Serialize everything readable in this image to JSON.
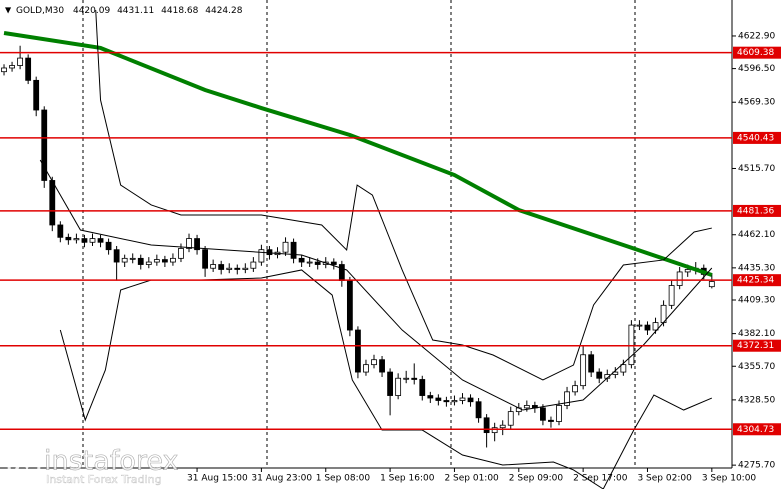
{
  "chart_data": {
    "type": "candlestick",
    "title": "GOLD,M30",
    "ohlc": [
      [
        4594,
        4600,
        4591,
        4597
      ],
      [
        4597,
        4602,
        4594,
        4599
      ],
      [
        4599,
        4615,
        4596,
        4605
      ],
      [
        4605,
        4608,
        4584,
        4587
      ],
      [
        4587,
        4590,
        4558,
        4563
      ],
      [
        4563,
        4566,
        4500,
        4506
      ],
      [
        4506,
        4509,
        4465,
        4470
      ],
      [
        4470,
        4473,
        4456,
        4460
      ],
      [
        4460,
        4463,
        4454,
        4458
      ],
      [
        4458,
        4463,
        4455,
        4459
      ],
      [
        4459,
        4462,
        4452,
        4456
      ],
      [
        4456,
        4463,
        4453,
        4459
      ],
      [
        4459,
        4462,
        4452,
        4456
      ],
      [
        4456,
        4459,
        4446,
        4450
      ],
      [
        4450,
        4453,
        4425,
        4440
      ],
      [
        4440,
        4446,
        4436,
        4443
      ],
      [
        4443,
        4447,
        4439,
        4443
      ],
      [
        4443,
        4446,
        4434,
        4438
      ],
      [
        4438,
        4444,
        4435,
        4440
      ],
      [
        4440,
        4446,
        4437,
        4442
      ],
      [
        4442,
        4445,
        4436,
        4440
      ],
      [
        4440,
        4447,
        4437,
        4443
      ],
      [
        4443,
        4455,
        4440,
        4451
      ],
      [
        4451,
        4463,
        4448,
        4459
      ],
      [
        4459,
        4462,
        4446,
        4450
      ],
      [
        4450,
        4453,
        4428,
        4435
      ],
      [
        4435,
        4442,
        4432,
        4438
      ],
      [
        4438,
        4441,
        4430,
        4434
      ],
      [
        4434,
        4439,
        4431,
        4435
      ],
      [
        4435,
        4438,
        4430,
        4434
      ],
      [
        4434,
        4439,
        4431,
        4435
      ],
      [
        4435,
        4444,
        4432,
        4440
      ],
      [
        4440,
        4454,
        4437,
        4450
      ],
      [
        4450,
        4453,
        4442,
        4446
      ],
      [
        4446,
        4452,
        4443,
        4448
      ],
      [
        4448,
        4460,
        4445,
        4456
      ],
      [
        4456,
        4459,
        4439,
        4443
      ],
      [
        4443,
        4446,
        4436,
        4440
      ],
      [
        4440,
        4444,
        4436,
        4440
      ],
      [
        4440,
        4443,
        4434,
        4438
      ],
      [
        4438,
        4444,
        4435,
        4440
      ],
      [
        4440,
        4443,
        4434,
        4438
      ],
      [
        4438,
        4441,
        4420,
        4425
      ],
      [
        4425,
        4428,
        4380,
        4385
      ],
      [
        4385,
        4388,
        4346,
        4351
      ],
      [
        4351,
        4361,
        4348,
        4357
      ],
      [
        4357,
        4365,
        4354,
        4361
      ],
      [
        4361,
        4364,
        4347,
        4351
      ],
      [
        4351,
        4354,
        4316,
        4332
      ],
      [
        4332,
        4350,
        4329,
        4346
      ],
      [
        4346,
        4352,
        4342,
        4346
      ],
      [
        4346,
        4358,
        4341,
        4345
      ],
      [
        4345,
        4348,
        4328,
        4332
      ],
      [
        4332,
        4335,
        4326,
        4330
      ],
      [
        4330,
        4333,
        4324,
        4328
      ],
      [
        4328,
        4331,
        4323,
        4327
      ],
      [
        4327,
        4332,
        4324,
        4328
      ],
      [
        4328,
        4334,
        4325,
        4330
      ],
      [
        4330,
        4333,
        4323,
        4327
      ],
      [
        4327,
        4330,
        4310,
        4314
      ],
      [
        4314,
        4317,
        4290,
        4302
      ],
      [
        4302,
        4310,
        4295,
        4306
      ],
      [
        4306,
        4312,
        4300,
        4308
      ],
      [
        4308,
        4323,
        4305,
        4319
      ],
      [
        4319,
        4326,
        4316,
        4322
      ],
      [
        4322,
        4328,
        4319,
        4324
      ],
      [
        4324,
        4327,
        4318,
        4322
      ],
      [
        4322,
        4325,
        4308,
        4312
      ],
      [
        4312,
        4315,
        4306,
        4311
      ],
      [
        4311,
        4328,
        4308,
        4324
      ],
      [
        4324,
        4339,
        4321,
        4335
      ],
      [
        4335,
        4344,
        4332,
        4340
      ],
      [
        4340,
        4372,
        4337,
        4365
      ],
      [
        4365,
        4368,
        4347,
        4351
      ],
      [
        4351,
        4354,
        4342,
        4346
      ],
      [
        4346,
        4353,
        4343,
        4349
      ],
      [
        4349,
        4355,
        4346,
        4351
      ],
      [
        4351,
        4361,
        4348,
        4357
      ],
      [
        4357,
        4393,
        4354,
        4389
      ],
      [
        4389,
        4393,
        4385,
        4389
      ],
      [
        4389,
        4392,
        4381,
        4385
      ],
      [
        4385,
        4395,
        4382,
        4391
      ],
      [
        4391,
        4409,
        4388,
        4405
      ],
      [
        4405,
        4425,
        4402,
        4421
      ],
      [
        4421,
        4436,
        4418,
        4432
      ],
      [
        4432,
        4438,
        4428,
        4434
      ],
      [
        4434,
        4440,
        4430,
        4435
      ],
      [
        4435,
        4438,
        4426,
        4430
      ],
      [
        4420.09,
        4431.11,
        4418.68,
        4424.28
      ]
    ],
    "lines": [
      {
        "color": "#008000",
        "width": 4,
        "x": [
          0,
          12,
          25,
          32,
          43,
          56,
          64,
          77,
          88
        ],
        "values": [
          4625.3,
          4613.2,
          4579.2,
          4564.6,
          4542.8,
          4510.4,
          4482.1,
          4453.8,
          4429.5
        ]
      },
      {
        "color": "#000000",
        "width": 1,
        "x": [
          11.4,
          12,
          14.5,
          18.3,
          22,
          32,
          39.5,
          42.6,
          43.9,
          45.8,
          49.5,
          53.3,
          57,
          60.8,
          67,
          70.8,
          73.3,
          77,
          82,
          85.8,
          88
        ],
        "values": [
          4643.9,
          4571.1,
          4502.3,
          4486.2,
          4478.1,
          4478.1,
          4470.0,
          4449.8,
          4502.3,
          4494.2,
          4433.6,
          4376.9,
          4372.9,
          4364.8,
          4344.6,
          4356.7,
          4405.3,
          4437.6,
          4441.7,
          4464.3,
          4467.5
        ]
      },
      {
        "color": "#000000",
        "width": 1,
        "x": [
          4.5,
          9.5,
          18.3,
          37,
          42.6,
          49.5,
          57,
          64.5,
          72,
          79.5,
          88
        ],
        "values": [
          4522.6,
          4465.9,
          4453.8,
          4445.7,
          4433.6,
          4385.0,
          4344.6,
          4320.3,
          4328.4,
          4372.9,
          4435.2
        ]
      },
      {
        "color": "#000000",
        "width": 1,
        "x": [
          7,
          10.1,
          12.6,
          14.5,
          18.3,
          24.5,
          32,
          37,
          40.8,
          43.3,
          47,
          52,
          57,
          62,
          68.3,
          70.8,
          74.5,
          78.3,
          80.8,
          84.5,
          88
        ],
        "values": [
          4385.0,
          4312.2,
          4352.7,
          4417.4,
          4425.5,
          4425.5,
          4427.1,
          4433.6,
          4413.3,
          4344.6,
          4304.1,
          4304.1,
          4283.9,
          4275.8,
          4278.2,
          4271.8,
          4256.4,
          4304.1,
          4332.4,
          4320.3,
          4330.0
        ]
      }
    ],
    "levels": [
      4609.38,
      4540.43,
      4481.36,
      4425.34,
      4372.31,
      4304.73
    ],
    "level_color": "#e00000",
    "ylim": [
      4256.4,
      4652.0
    ],
    "yticks": [
      {
        "value": 4622.9,
        "label": "4622.90"
      },
      {
        "value": 4596.5,
        "label": "4596.50"
      },
      {
        "value": 4569.3,
        "label": "4569.30"
      },
      {
        "value": 4515.7,
        "label": "4515.70"
      },
      {
        "value": 4462.1,
        "label": "4462.10"
      },
      {
        "value": 4435.3,
        "label": "4435.30"
      },
      {
        "value": 4409.3,
        "label": "4409.30"
      },
      {
        "value": 4382.1,
        "label": "4382.10"
      },
      {
        "value": 4355.7,
        "label": "4355.70"
      },
      {
        "value": 4328.5,
        "label": "4328.50"
      },
      {
        "value": 4275.7,
        "label": "4275.70"
      }
    ],
    "xlim": [
      -0.5,
      96.6
    ],
    "xticks": [
      {
        "value": 24,
        "label": "31 Aug 15:00"
      },
      {
        "value": 32,
        "label": "31 Aug 23:00"
      },
      {
        "value": 40,
        "label": "1 Sep 08:00"
      },
      {
        "value": 48,
        "label": "1 Sep 16:00"
      },
      {
        "value": 56,
        "label": "2 Sep 01:00"
      },
      {
        "value": 64,
        "label": "2 Sep 09:00"
      },
      {
        "value": 72,
        "label": "2 Sep 17:00"
      },
      {
        "value": 80,
        "label": "3 Sep 02:00"
      },
      {
        "value": 88,
        "label": "3 Sep 10:00"
      }
    ]
  },
  "watermark": {
    "brand": "instaforex",
    "slogan": "Instant Forex Trading"
  }
}
